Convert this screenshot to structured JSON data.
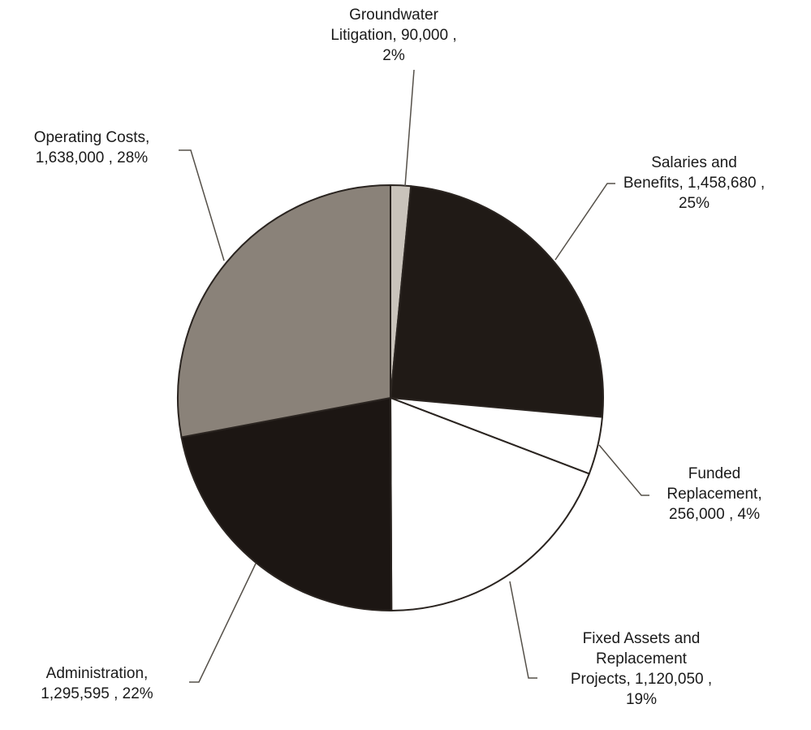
{
  "chart_data": {
    "type": "pie",
    "title": "",
    "slices": [
      {
        "name": "Groundwater Litigation",
        "value": 90000,
        "percent": 2,
        "color": "#c9c3bb",
        "label_lines": [
          "Groundwater",
          "Litigation, 90,000 ,",
          "2%"
        ]
      },
      {
        "name": "Salaries and Benefits",
        "value": 1458680,
        "percent": 25,
        "color": "#201a16",
        "label_lines": [
          "Salaries and",
          "Benefits, 1,458,680 ,",
          "25%"
        ]
      },
      {
        "name": "Funded Replacement",
        "value": 256000,
        "percent": 4,
        "color": "#ffffff",
        "label_lines": [
          "Funded",
          "Replacement,",
          "256,000 , 4%"
        ]
      },
      {
        "name": "Fixed Assets and Replacement Projects",
        "value": 1120050,
        "percent": 19,
        "color": "#ffffff",
        "label_lines": [
          "Fixed Assets and",
          "Replacement",
          "Projects, 1,120,050 ,",
          "19%"
        ]
      },
      {
        "name": "Administration",
        "value": 1295595,
        "percent": 22,
        "color": "#1c1613",
        "label_lines": [
          "Administration,",
          "1,295,595 , 22%"
        ]
      },
      {
        "name": "Operating Costs",
        "value": 1638000,
        "percent": 28,
        "color": "#8a8279",
        "label_lines": [
          "Operating Costs,",
          "1,638,000 , 28%"
        ]
      }
    ]
  }
}
